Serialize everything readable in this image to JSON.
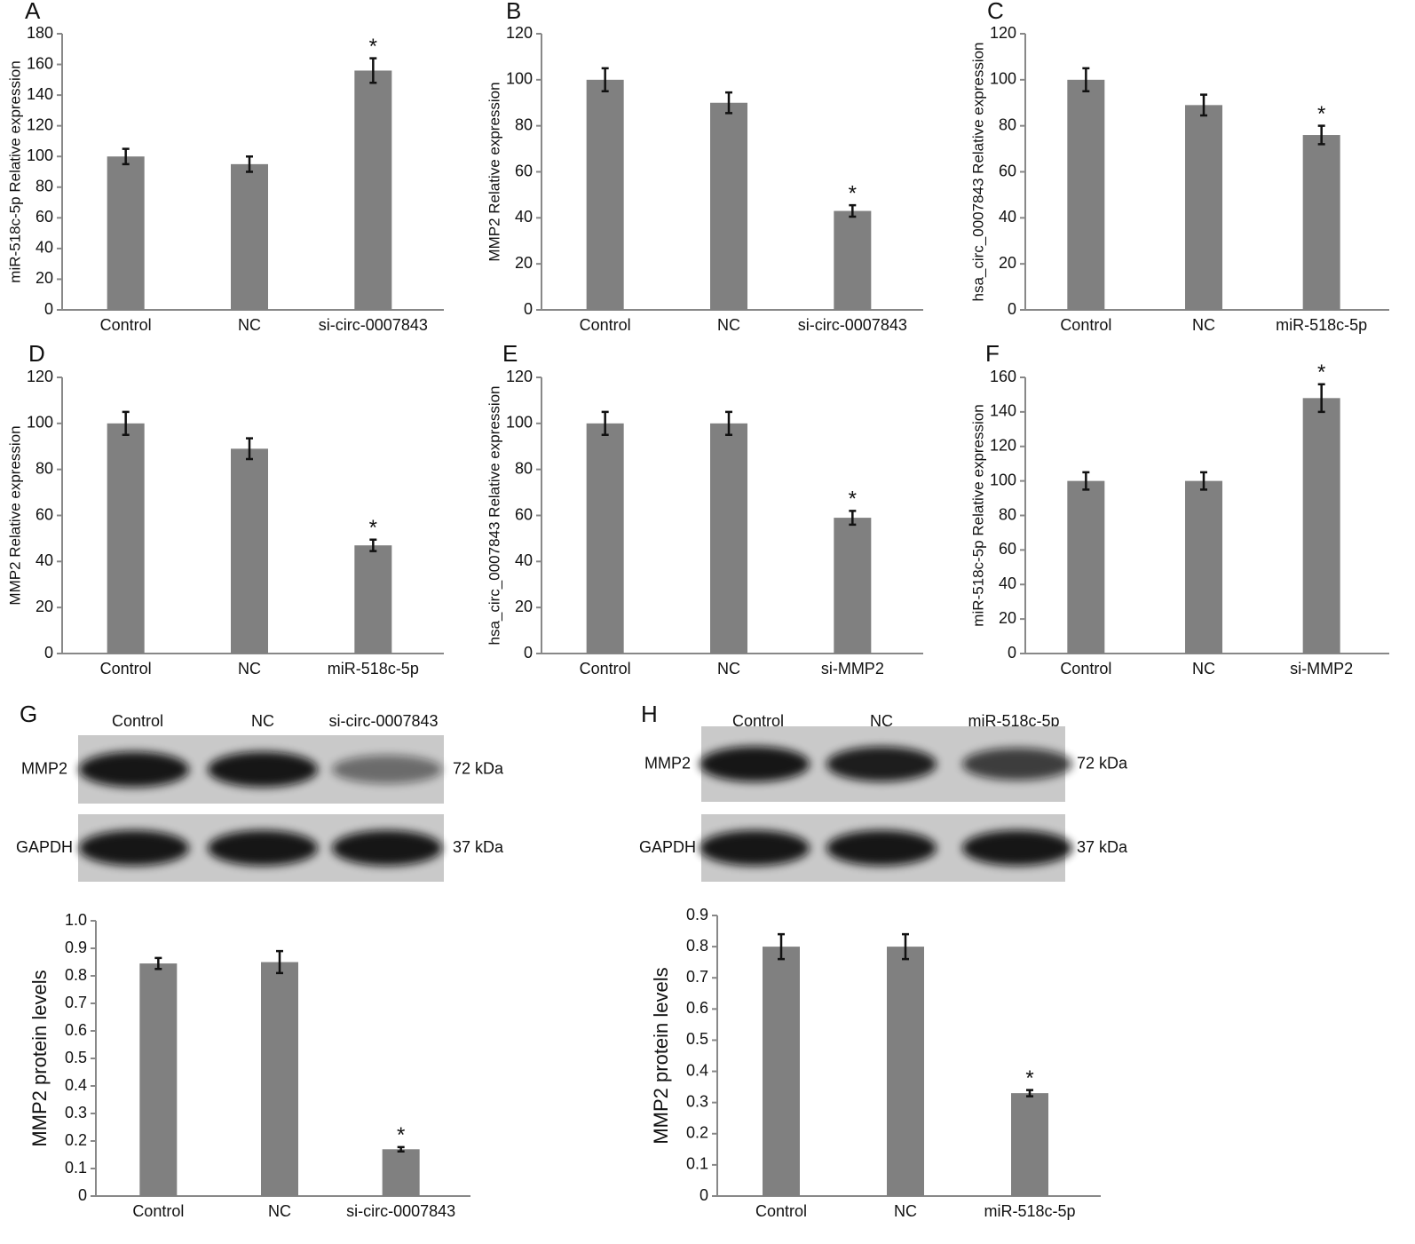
{
  "chart_data": [
    {
      "type": "bar",
      "panel": "A",
      "ylabel": "miR-518c-5p Relative expression",
      "categories": [
        "Control",
        "NC",
        "si-circ-0007843"
      ],
      "values": [
        100,
        95,
        156
      ],
      "errors": [
        5,
        5,
        8
      ],
      "color": "#808080",
      "ylim": [
        0,
        180
      ],
      "yticks": [
        0,
        20,
        40,
        60,
        80,
        100,
        120,
        140,
        160,
        180
      ],
      "annotations": [
        {
          "category": "si-circ-0007843",
          "text": "*"
        }
      ]
    },
    {
      "type": "bar",
      "panel": "B",
      "ylabel": "MMP2 Relative expression",
      "categories": [
        "Control",
        "NC",
        "si-circ-0007843"
      ],
      "values": [
        100,
        90,
        43
      ],
      "errors": [
        5,
        4.5,
        2.5
      ],
      "color": "#808080",
      "ylim": [
        0,
        120
      ],
      "yticks": [
        0,
        20,
        40,
        60,
        80,
        100,
        120
      ],
      "annotations": [
        {
          "category": "si-circ-0007843",
          "text": "*"
        }
      ]
    },
    {
      "type": "bar",
      "panel": "C",
      "ylabel": "hsa_circ_0007843 Relative expression",
      "categories": [
        "Control",
        "NC",
        "miR-518c-5p"
      ],
      "values": [
        100,
        89,
        76
      ],
      "errors": [
        5,
        4.5,
        4
      ],
      "color": "#808080",
      "ylim": [
        0,
        120
      ],
      "yticks": [
        0,
        20,
        40,
        60,
        80,
        100,
        120
      ],
      "annotations": [
        {
          "category": "miR-518c-5p",
          "text": "*"
        }
      ]
    },
    {
      "type": "bar",
      "panel": "D",
      "ylabel": "MMP2 Relative expression",
      "categories": [
        "Control",
        "NC",
        "miR-518c-5p"
      ],
      "values": [
        100,
        89,
        47
      ],
      "errors": [
        5,
        4.5,
        2.5
      ],
      "color": "#808080",
      "ylim": [
        0,
        120
      ],
      "yticks": [
        0,
        20,
        40,
        60,
        80,
        100,
        120
      ],
      "annotations": [
        {
          "category": "miR-518c-5p",
          "text": "*"
        }
      ]
    },
    {
      "type": "bar",
      "panel": "E",
      "ylabel": "hsa_circ_0007843 Relative expression",
      "categories": [
        "Control",
        "NC",
        "si-MMP2"
      ],
      "values": [
        100,
        100,
        59
      ],
      "errors": [
        5,
        5,
        3
      ],
      "color": "#808080",
      "ylim": [
        0,
        120
      ],
      "yticks": [
        0,
        20,
        40,
        60,
        80,
        100,
        120
      ],
      "annotations": [
        {
          "category": "si-MMP2",
          "text": "*"
        }
      ]
    },
    {
      "type": "bar",
      "panel": "F",
      "ylabel": "miR-518c-5p Relative expression",
      "categories": [
        "Control",
        "NC",
        "si-MMP2"
      ],
      "values": [
        100,
        100,
        148
      ],
      "errors": [
        5,
        5,
        8
      ],
      "color": "#808080",
      "ylim": [
        0,
        160
      ],
      "yticks": [
        0,
        20,
        40,
        60,
        80,
        100,
        120,
        140,
        160
      ],
      "annotations": [
        {
          "category": "si-MMP2",
          "text": "*"
        }
      ]
    },
    {
      "type": "bar",
      "ylabel": "MMP2 protein levels",
      "categories": [
        "Control",
        "NC",
        "si-circ-0007843"
      ],
      "values": [
        0.845,
        0.85,
        0.17
      ],
      "errors": [
        0.02,
        0.04,
        0.008
      ],
      "color": "#808080",
      "ylim": [
        0,
        1
      ],
      "yticks": [
        0,
        0.1,
        0.2,
        0.3,
        0.4,
        0.5,
        0.6,
        0.7,
        0.8,
        0.9,
        {
          "value": 1,
          "label": "1.0"
        }
      ],
      "annotations": [
        {
          "category": "si-circ-0007843",
          "text": "*"
        }
      ]
    },
    {
      "type": "bar",
      "ylabel": "MMP2 protein levels",
      "categories": [
        "Control",
        "NC",
        "miR-518c-5p"
      ],
      "values": [
        0.8,
        0.8,
        0.33
      ],
      "errors": [
        0.04,
        0.04,
        0.01
      ],
      "color": "#808080",
      "ylim": [
        0,
        0.9
      ],
      "yticks": [
        0,
        0.1,
        0.2,
        0.3,
        0.4,
        0.5,
        0.6,
        0.7,
        0.8,
        0.9
      ],
      "annotations": [
        {
          "category": "miR-518c-5p",
          "text": "*"
        }
      ]
    }
  ],
  "blots": [
    {
      "panel": "G",
      "lanes": [
        "Control",
        "NC",
        "si-circ-0007843"
      ],
      "rows": [
        {
          "label": "MMP2",
          "size": "72 kDa"
        },
        {
          "label": "GAPDH",
          "size": "37 kDa"
        }
      ]
    },
    {
      "panel": "H",
      "lanes": [
        "Control",
        "NC",
        "miR-518c-5p"
      ],
      "rows": [
        {
          "label": "MMP2",
          "size": "72 kDa"
        },
        {
          "label": "GAPDH",
          "size": "37 kDa"
        }
      ]
    }
  ]
}
